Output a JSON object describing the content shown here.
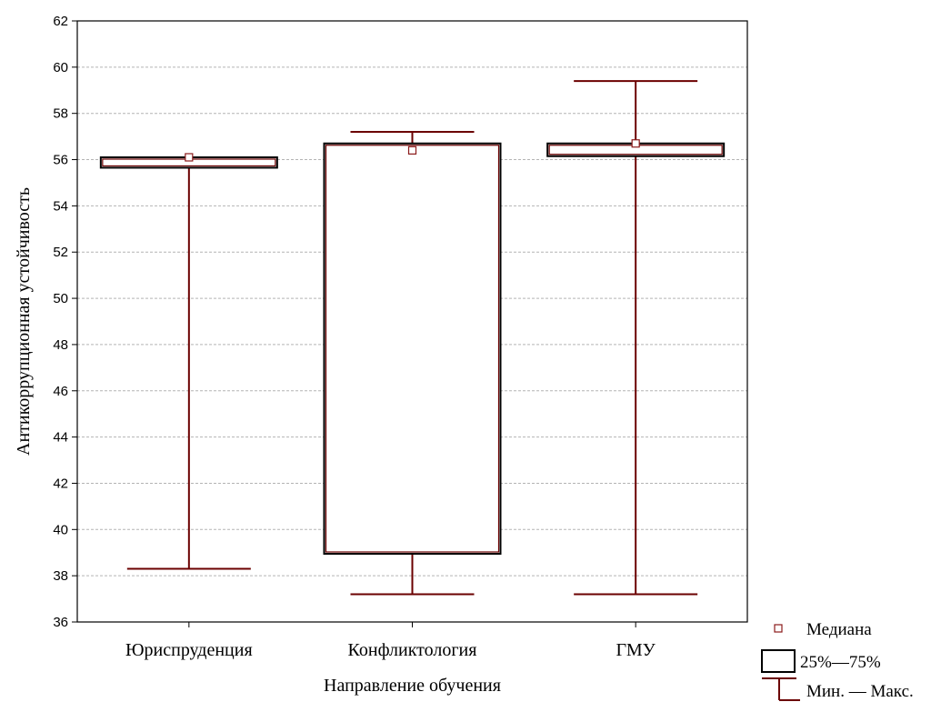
{
  "chart_data": {
    "type": "boxplot",
    "xlabel": "Направление обучения",
    "ylabel": "Антикоррупционная устойчивость",
    "ylim": [
      36,
      62
    ],
    "yticks": [
      36,
      38,
      40,
      42,
      44,
      46,
      48,
      50,
      52,
      54,
      56,
      58,
      60,
      62
    ],
    "grid": true,
    "legend_position": "bottom-right",
    "categories": [
      "Юриспруденция",
      "Конфликтология",
      "ГМУ"
    ],
    "series": [
      {
        "category": "Юриспруденция",
        "min": 38.3,
        "q1": 55.65,
        "median": 56.1,
        "q3": 56.1,
        "max": 56.1
      },
      {
        "category": "Конфликтология",
        "min": 37.2,
        "q1": 38.95,
        "median": 56.4,
        "q3": 56.7,
        "max": 57.2
      },
      {
        "category": "ГМУ",
        "min": 37.2,
        "q1": 56.15,
        "median": 56.7,
        "q3": 56.7,
        "max": 59.4
      }
    ],
    "legend": {
      "median": "Медиана",
      "box": "25%—75%",
      "whisker": "Мин. — Макс."
    },
    "colors": {
      "line": "#6b0000",
      "median_marker": "#8b1a1a",
      "grid": "#b4b4b4",
      "box_border": "#000000"
    }
  }
}
